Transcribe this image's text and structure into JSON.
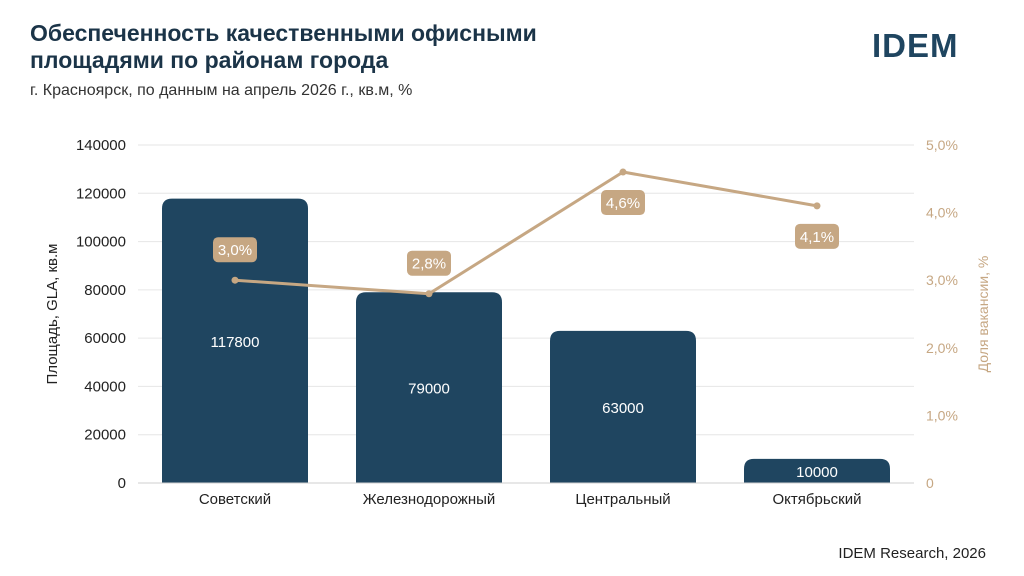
{
  "header": {
    "title": "Обеспеченность качественными офисными площадями по районам города",
    "subtitle": "г. Красноярск, по данным на апрель 2026 г., кв.м, %",
    "logo": "IDEM"
  },
  "footer": {
    "source": "IDEM Research, 2026"
  },
  "chart_data": {
    "type": "bar",
    "categories": [
      "Советский",
      "Железнодорожный",
      "Центральный",
      "Октябрьский"
    ],
    "series": [
      {
        "values": [
          117800,
          79000,
          63000,
          10000
        ],
        "axis": "left",
        "type": "bar",
        "color": "#1f4560",
        "labels": [
          "117800",
          "79000",
          "63000",
          "10000"
        ]
      },
      {
        "values": [
          3.0,
          2.8,
          4.6,
          4.1
        ],
        "axis": "right",
        "type": "line",
        "color": "#c6a783",
        "labels": [
          "3,0%",
          "2,8%",
          "4,6%",
          "4,1%"
        ]
      }
    ],
    "ylabel": "Площадь, GLA, кв.м",
    "y2label": "Доля вакансии, %",
    "ylim": [
      0,
      140000
    ],
    "y2lim": [
      0,
      5.0
    ],
    "yticks": [
      "0",
      "20000",
      "40000",
      "60000",
      "80000",
      "100000",
      "120000",
      "140000"
    ],
    "y2ticks": [
      "0",
      "1,0%",
      "2,0%",
      "3,0%",
      "4,0%",
      "5,0%"
    ],
    "grid": true,
    "legend": "none"
  }
}
